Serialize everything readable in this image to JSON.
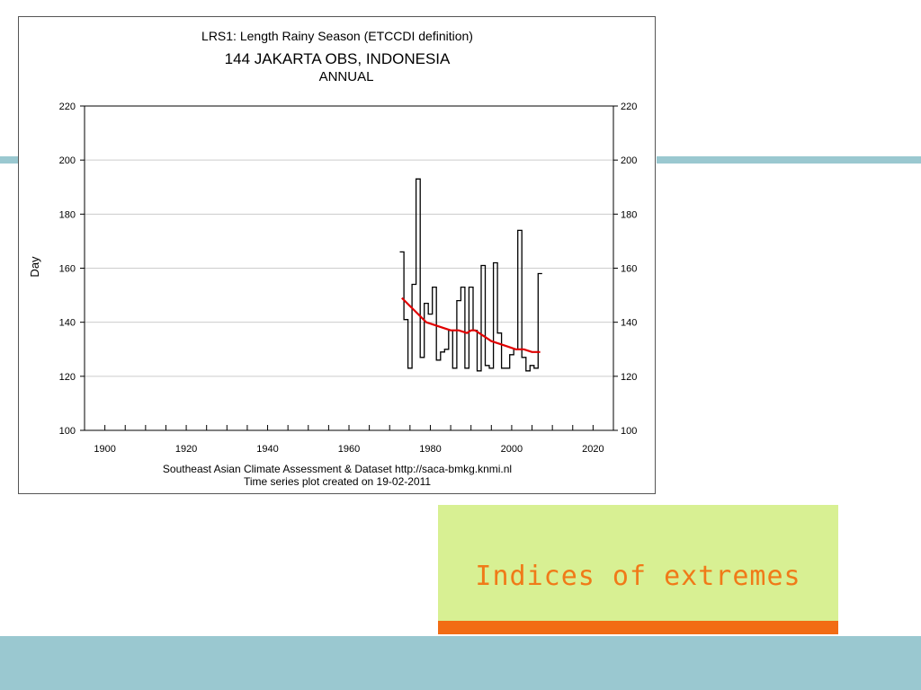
{
  "slide": {
    "title": "Indices of extremes",
    "colors": {
      "accent_band": "#9ac8d0",
      "title_box": "#d8f093",
      "title_text": "#f07a18",
      "title_underline": "#f26c14"
    }
  },
  "chart_data": {
    "type": "line",
    "title": "LRS1: Length Rainy Season (ETCCDI definition)",
    "subtitle": "144 JAKARTA OBS, INDONESIA",
    "subtitle2": "ANNUAL",
    "ylabel": "Day",
    "xlim": [
      1895,
      2025
    ],
    "ylim": [
      100,
      220
    ],
    "xticks": [
      1900,
      1920,
      1940,
      1960,
      1980,
      2000,
      2020
    ],
    "yticks": [
      100,
      120,
      140,
      160,
      180,
      200,
      220
    ],
    "grid": true,
    "footer1": "Southeast Asian Climate Assessment & Dataset  http://saca-bmkg.knmi.nl",
    "footer2": "Time series plot created on 19-02-2011",
    "series": [
      {
        "style": "step",
        "color": "#000000",
        "x": [
          1973,
          1974,
          1975,
          1976,
          1977,
          1978,
          1979,
          1980,
          1981,
          1982,
          1983,
          1984,
          1985,
          1986,
          1987,
          1988,
          1989,
          1990,
          1991,
          1992,
          1993,
          1994,
          1995,
          1996,
          1997,
          1998,
          1999,
          2000,
          2001,
          2002,
          2003,
          2004,
          2005,
          2006,
          2007
        ],
        "values": [
          166,
          141,
          123,
          154,
          193,
          127,
          147,
          143,
          153,
          126,
          129,
          130,
          137,
          123,
          148,
          153,
          123,
          153,
          137,
          122,
          161,
          124,
          123,
          162,
          136,
          123,
          123,
          128,
          130,
          174,
          127,
          122,
          124,
          123,
          158
        ]
      },
      {
        "style": "smooth",
        "color": "#e00000",
        "x": [
          1973,
          1975,
          1977,
          1979,
          1981,
          1983,
          1985,
          1987,
          1989,
          1990,
          1991,
          1993,
          1995,
          1997,
          1999,
          2001,
          2003,
          2005,
          2007
        ],
        "values": [
          149,
          146,
          143,
          140,
          139,
          138,
          137,
          137,
          136,
          137,
          137,
          135,
          133,
          132,
          131,
          130,
          130,
          129,
          129
        ]
      }
    ]
  }
}
